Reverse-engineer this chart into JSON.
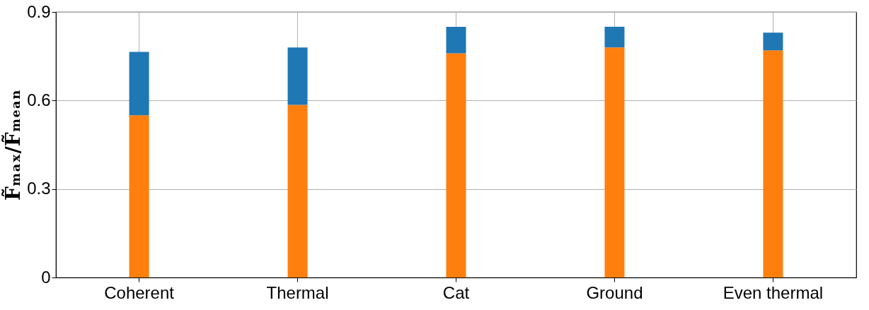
{
  "chart_data": {
    "type": "bar",
    "ylabel": "F̃ₘₐₓ/F̃ₘₑₐₙ",
    "categories": [
      "Coherent",
      "Thermal",
      "Cat",
      "Ground",
      "Even thermal"
    ],
    "stacked": true,
    "series": [
      {
        "color": "#ff7f0e",
        "values": [
          0.55,
          0.585,
          0.76,
          0.78,
          0.77
        ]
      },
      {
        "color": "#1f77b4",
        "values": [
          0.215,
          0.195,
          0.09,
          0.07,
          0.06
        ]
      }
    ],
    "ylim": [
      0,
      0.9
    ],
    "yticks": [
      0,
      0.3,
      0.6,
      0.9
    ],
    "grid": true
  }
}
